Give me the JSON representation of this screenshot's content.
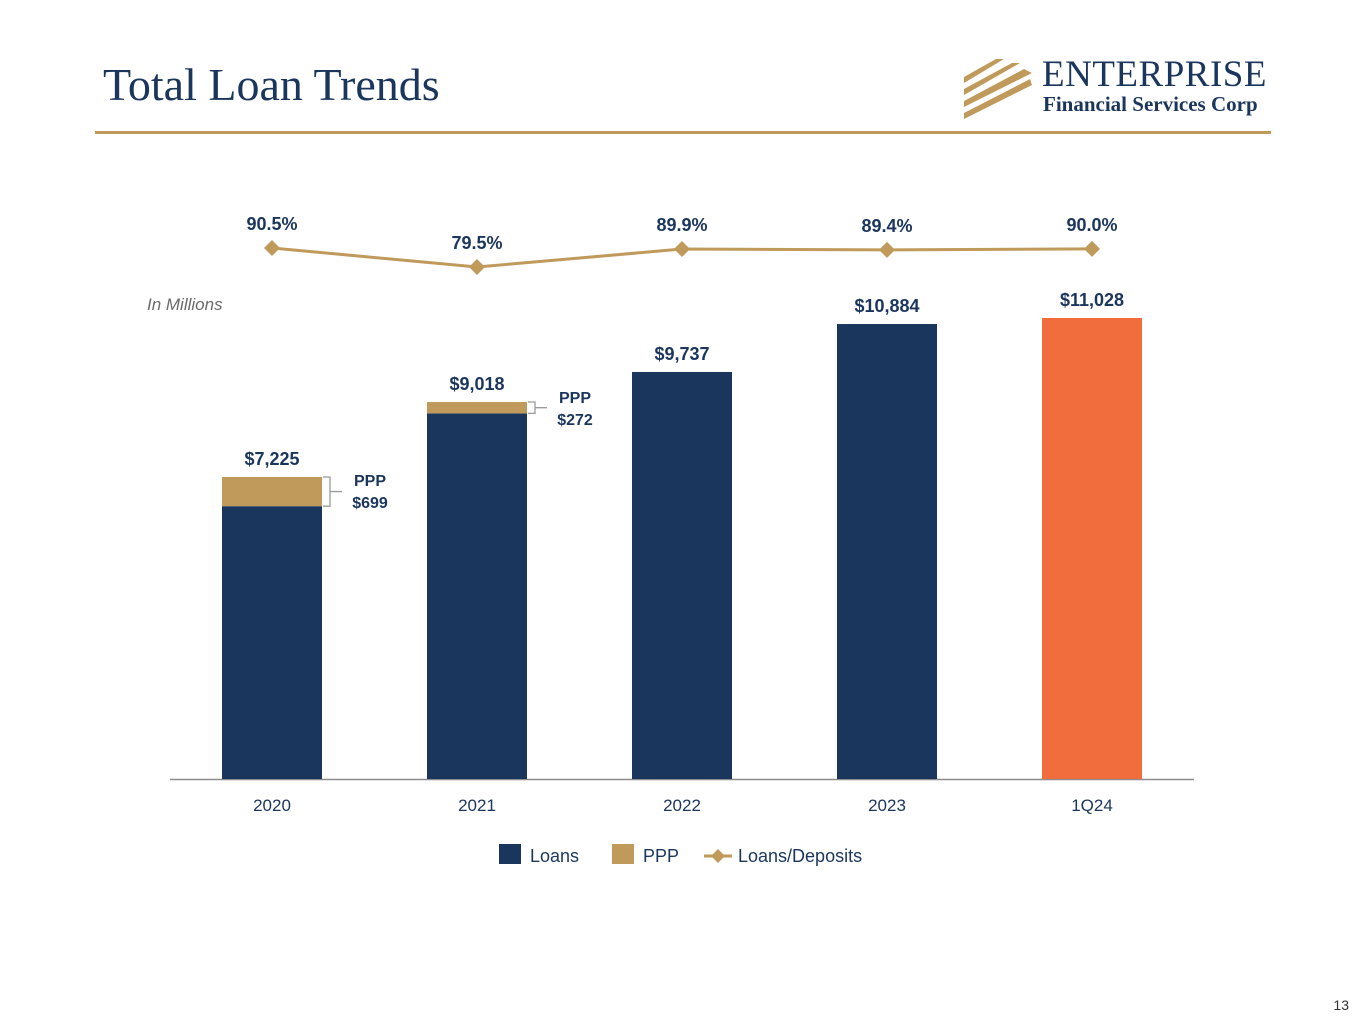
{
  "slide": {
    "title": "Total Loan Trends",
    "logo_name": "ENTERPRISE",
    "logo_subtitle": "Financial Services Corp",
    "page_number": "13",
    "units_note": "In Millions"
  },
  "colors": {
    "navy": "#1b365d",
    "gold": "#c09a5b",
    "orange": "#f26d3d",
    "axis": "#8c8c8c"
  },
  "chart_data": {
    "type": "bar",
    "stacked": true,
    "categories": [
      "2020",
      "2021",
      "2022",
      "2023",
      "1Q24"
    ],
    "series": [
      {
        "name": "Loans",
        "values": [
          6526,
          8746,
          9737,
          10884,
          11028
        ]
      },
      {
        "name": "PPP",
        "values": [
          699,
          272,
          0,
          0,
          0
        ]
      }
    ],
    "totals": [
      7225,
      9018,
      9737,
      10884,
      11028
    ],
    "total_labels": [
      "$7,225",
      "$9,018",
      "$9,737",
      "$10,884",
      "$11,028"
    ],
    "highlight_index": 4,
    "ppp_callouts": [
      {
        "index": 0,
        "label": "PPP",
        "value": "$699"
      },
      {
        "index": 1,
        "label": "PPP",
        "value": "$272"
      }
    ],
    "line_series": {
      "name": "Loans/Deposits",
      "values": [
        90.5,
        79.5,
        89.9,
        89.4,
        90.0
      ],
      "labels": [
        "90.5%",
        "79.5%",
        "89.9%",
        "89.4%",
        "90.0%"
      ]
    },
    "ylim": [
      0,
      11028
    ],
    "legend": [
      "Loans",
      "PPP",
      "Loans/Deposits"
    ],
    "legend_position": "bottom"
  }
}
